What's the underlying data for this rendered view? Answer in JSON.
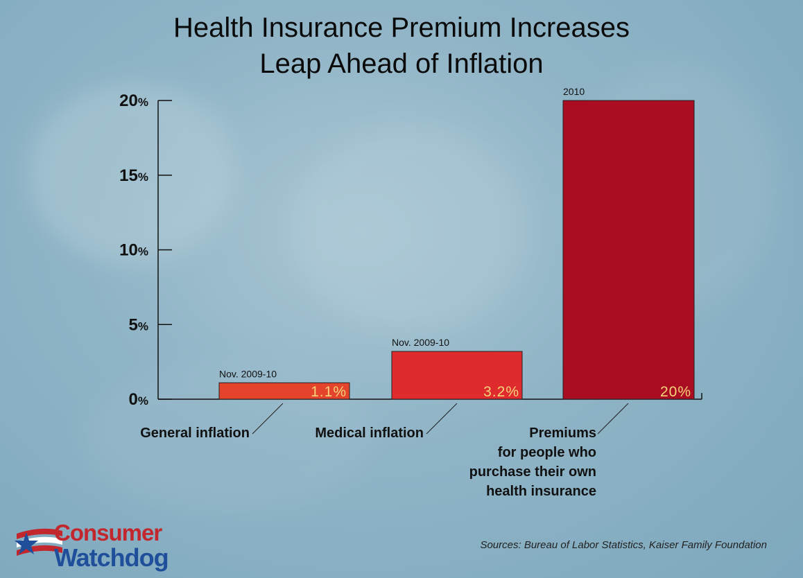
{
  "chart_data": {
    "type": "bar",
    "title": "Health Insurance Premium Increases",
    "subtitle": "Leap Ahead of Inflation",
    "ylim": [
      0,
      20
    ],
    "yticks": [
      {
        "num": "0",
        "suffix": "%"
      },
      {
        "num": "5",
        "suffix": "%"
      },
      {
        "num": "10",
        "suffix": "%"
      },
      {
        "num": "15",
        "suffix": "%"
      },
      {
        "num": "20",
        "suffix": "%"
      }
    ],
    "categories": [
      "General inflation",
      "Medical inflation",
      "Premiums for people who purchase their own health insurance"
    ],
    "category_lines": [
      [
        "General inflation"
      ],
      [
        "Medical inflation"
      ],
      [
        "Premiums",
        "for people who",
        "purchase their own",
        "health insurance"
      ]
    ],
    "values": [
      1.1,
      3.2,
      20
    ],
    "data_labels": [
      "1.1%",
      "3.2%",
      "20%"
    ],
    "period_labels": [
      "Nov. 2009-10",
      "Nov. 2009-10",
      "2010"
    ],
    "colors": [
      "#e4432c",
      "#e02b2e",
      "#aa0d22"
    ],
    "data_label_color": "#f6d47a"
  },
  "source": "Sources: Bureau of Labor Statistics, Kaiser Family Foundation",
  "logo": {
    "line1": "Consumer",
    "line2": "Watchdog"
  }
}
